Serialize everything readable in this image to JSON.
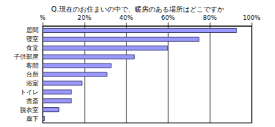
{
  "chart_data": {
    "type": "bar",
    "orientation": "horizontal",
    "title": "Q.現在のお住まいの中で、暖房のある場所はどこですか",
    "categories": [
      "居間",
      "寝室",
      "食堂",
      "子供部屋",
      "客間",
      "台所",
      "浴室",
      "トイレ",
      "書斎",
      "脱衣室",
      "廊下"
    ],
    "values": [
      93,
      75,
      60,
      44,
      33,
      31,
      19,
      14,
      14,
      8,
      1
    ],
    "color": "#9999ff",
    "xlim": [
      0,
      100
    ],
    "xticks": [
      {
        "value": 0,
        "label": "%"
      },
      {
        "value": 20,
        "label": "20%"
      },
      {
        "value": 40,
        "label": "40%"
      },
      {
        "value": 60,
        "label": "60%"
      },
      {
        "value": 80,
        "label": "80%"
      },
      {
        "value": 100,
        "label": "100%"
      }
    ],
    "grid": true
  }
}
